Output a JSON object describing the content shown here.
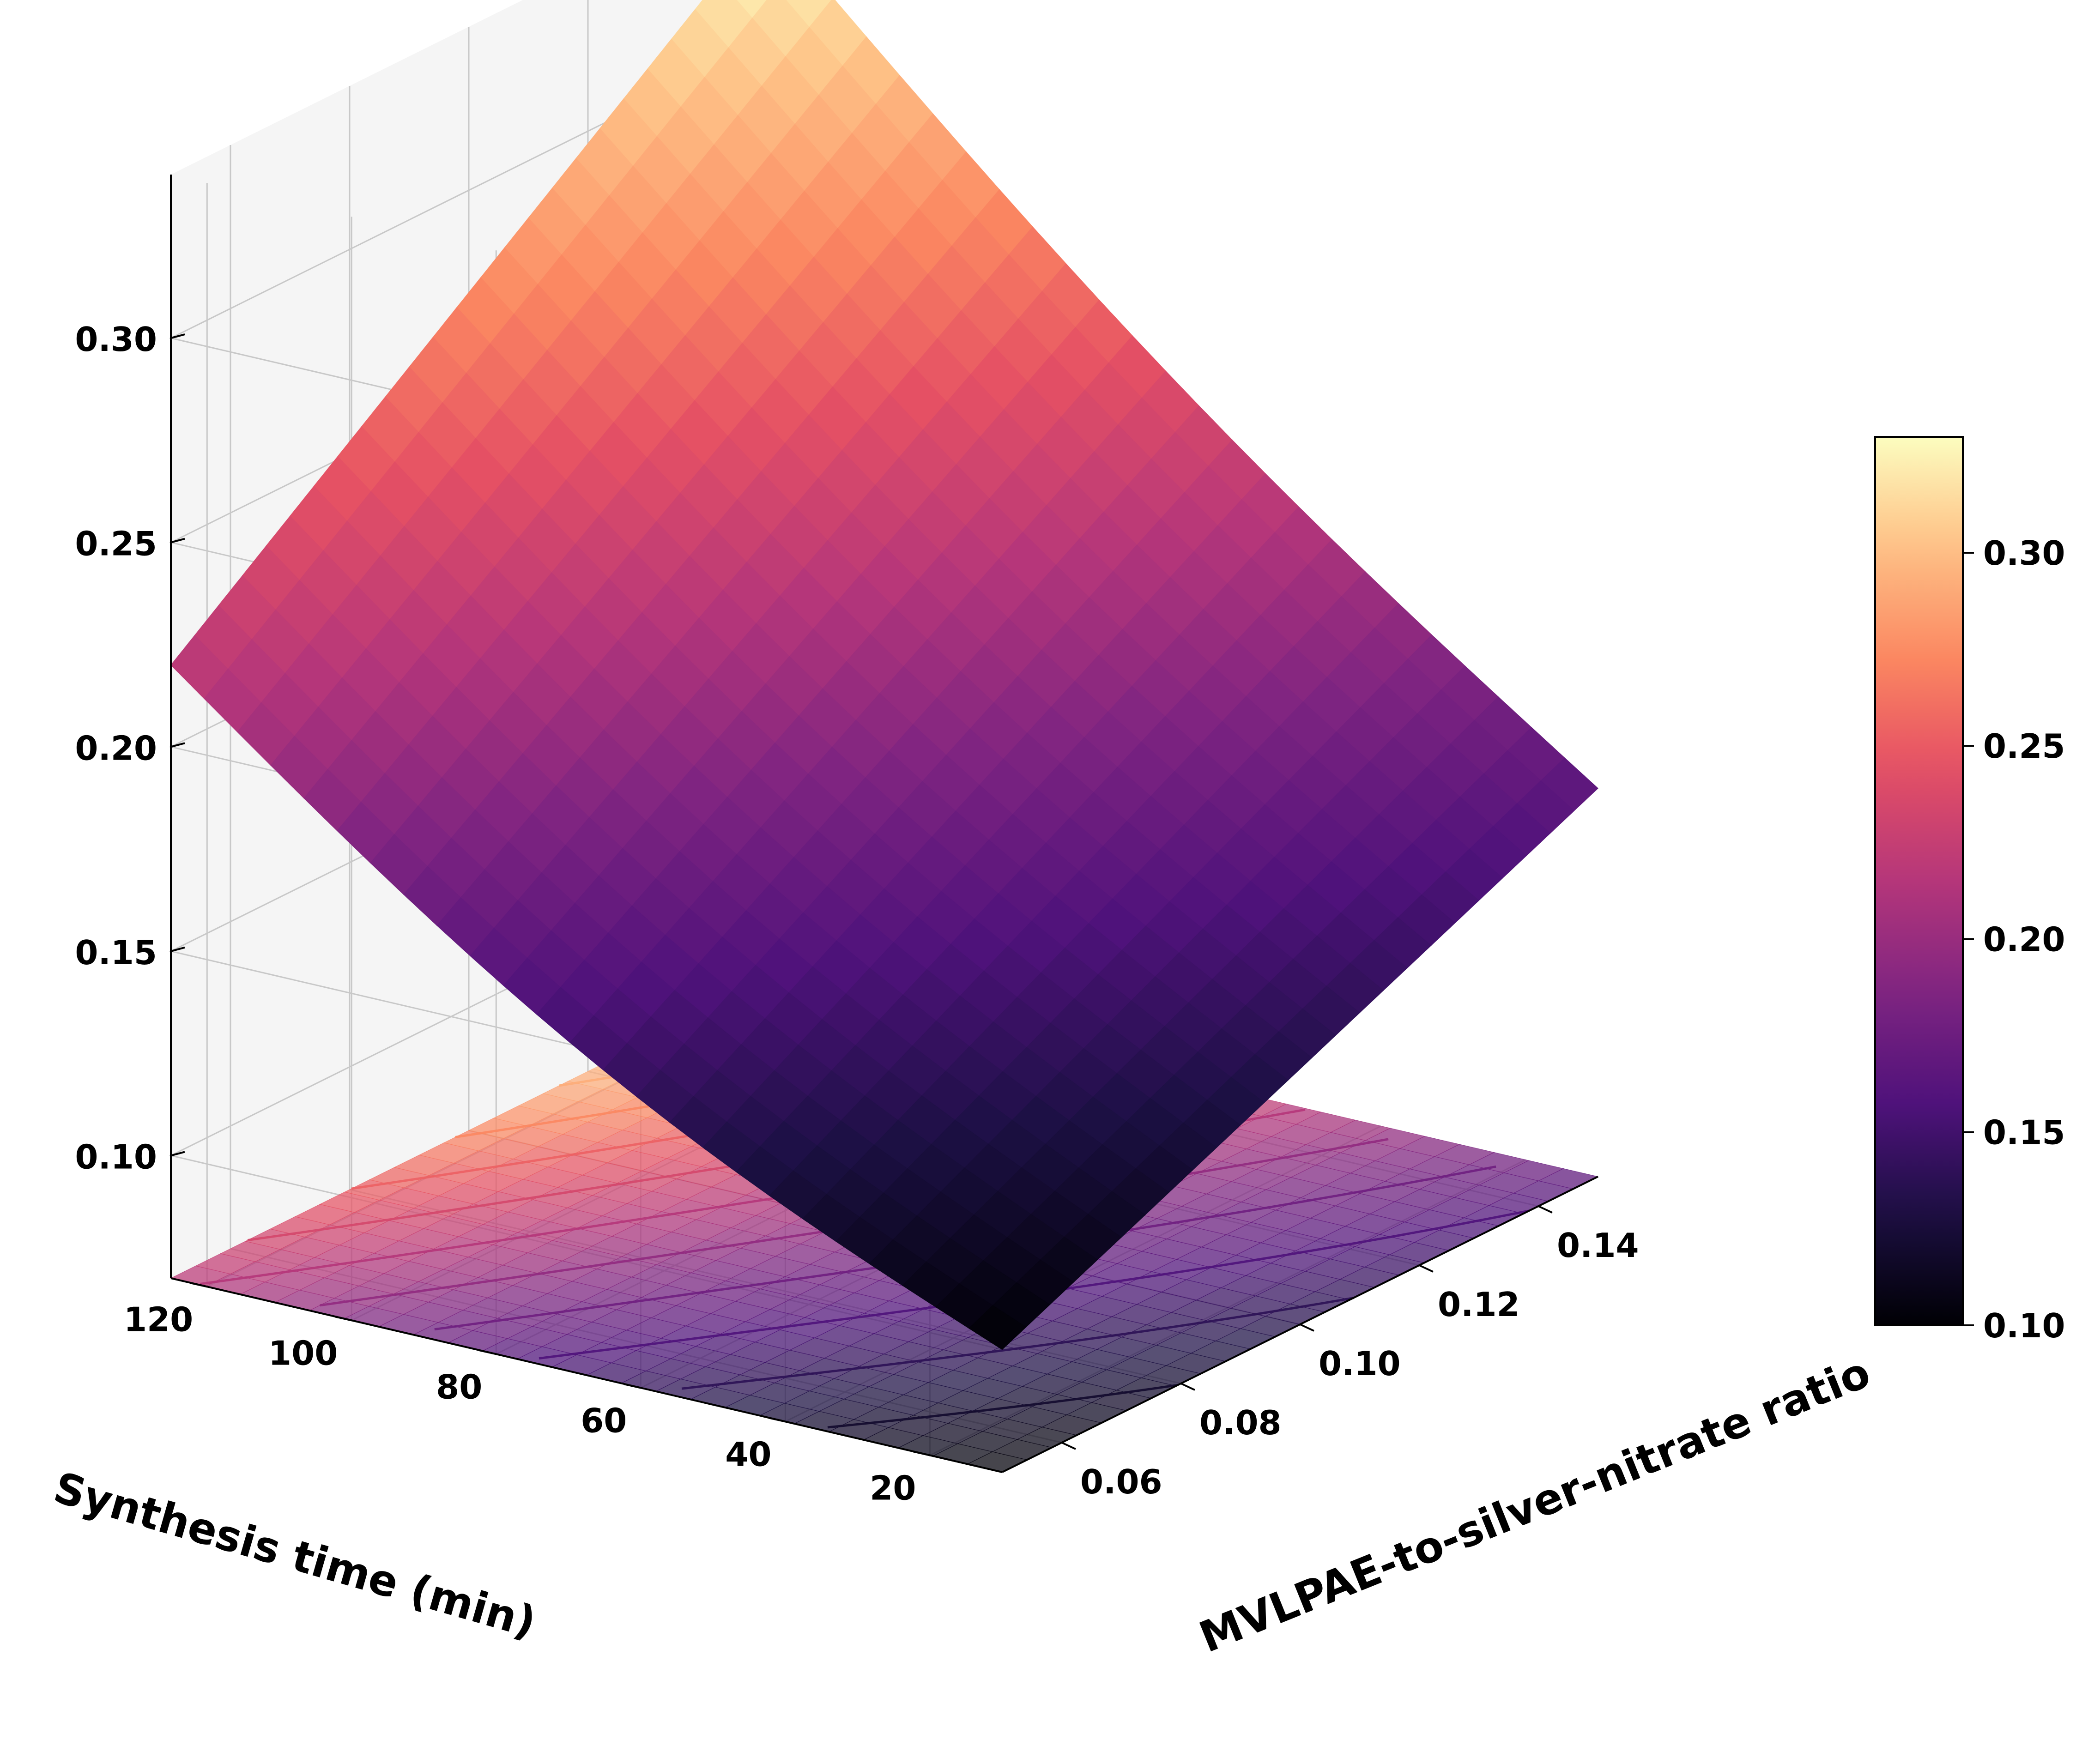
{
  "chart_data": {
    "type": "surface3d",
    "title": "",
    "xlabel": "MVLPAE-to-silver-nitrate ratio",
    "ylabel": "Synthesis time (min)",
    "zlabel": "",
    "xlim": [
      0.05,
      0.15
    ],
    "ylim": [
      10,
      125
    ],
    "zlim": [
      0.07,
      0.34
    ],
    "x_ticks": [
      "0.06",
      "0.08",
      "0.10",
      "0.12",
      "0.14"
    ],
    "x_tick_values": [
      0.06,
      0.08,
      0.1,
      0.12,
      0.14
    ],
    "y_ticks": [
      "20",
      "40",
      "60",
      "80",
      "100",
      "120"
    ],
    "y_tick_values": [
      20,
      40,
      60,
      80,
      100,
      120
    ],
    "z_ticks": [
      "0.10",
      "0.15",
      "0.20",
      "0.25",
      "0.30"
    ],
    "z_tick_values": [
      0.1,
      0.15,
      0.2,
      0.25,
      0.3
    ],
    "colormap": "magma",
    "colorbar": {
      "range": [
        0.1,
        0.33
      ],
      "ticks": [
        "0.10",
        "0.15",
        "0.20",
        "0.25",
        "0.30"
      ],
      "tick_values": [
        0.1,
        0.15,
        0.2,
        0.25,
        0.3
      ]
    },
    "corner_values": [
      {
        "x": 0.05,
        "y": 10,
        "z": 0.1
      },
      {
        "x": 0.15,
        "y": 10,
        "z": 0.165
      },
      {
        "x": 0.05,
        "y": 125,
        "z": 0.22
      },
      {
        "x": 0.15,
        "y": 125,
        "z": 0.33
      }
    ],
    "grid": true,
    "projected_contours": true,
    "colors": {
      "pane_left": "#ececec",
      "pane_right": "#f5f5f5",
      "pane_floor": "#f2f2f2",
      "grid": "#c8c8c8"
    }
  }
}
